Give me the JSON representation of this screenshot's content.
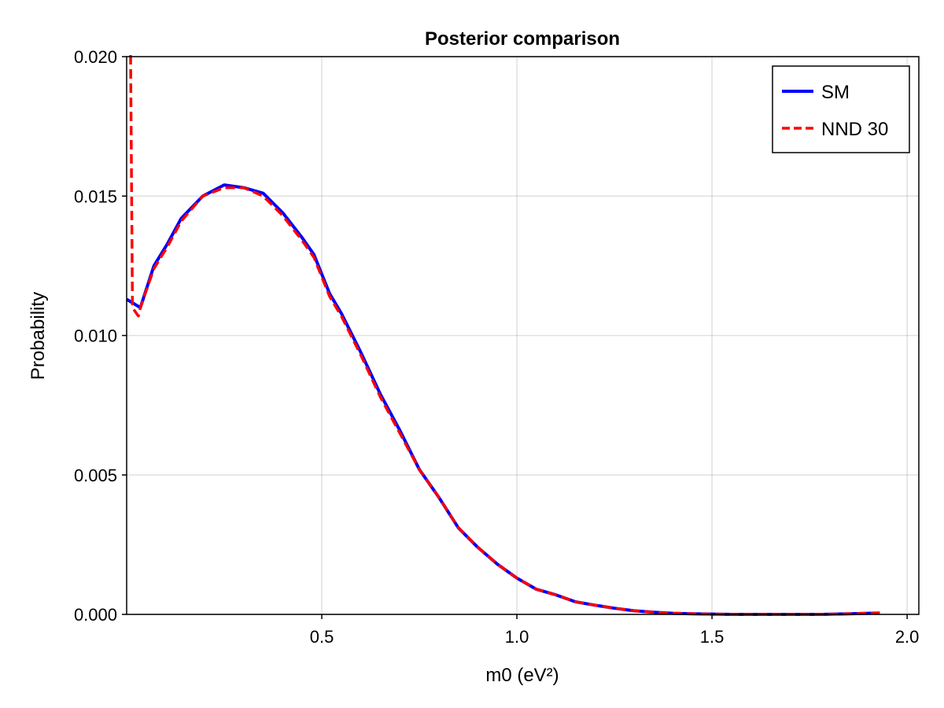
{
  "chart_data": {
    "type": "line",
    "title": "Posterior comparison",
    "xlabel": "m0 (eV²)",
    "ylabel": "Probability",
    "xlim": [
      0.0,
      2.03
    ],
    "ylim": [
      0.0,
      0.02
    ],
    "xticks": [
      0.5,
      1.0,
      1.5,
      2.0
    ],
    "xtick_labels": [
      "0.5",
      "1.0",
      "1.5",
      "2.0"
    ],
    "yticks": [
      0.0,
      0.005,
      0.01,
      0.015,
      0.02
    ],
    "ytick_labels": [
      "0.000",
      "0.005",
      "0.010",
      "0.015",
      "0.020"
    ],
    "grid": true,
    "legend_position": "top-right",
    "series": [
      {
        "name": "SM",
        "color": "#0000ff",
        "style": "solid",
        "x": [
          0.0,
          0.035,
          0.07,
          0.105,
          0.14,
          0.195,
          0.25,
          0.3,
          0.35,
          0.4,
          0.45,
          0.48,
          0.52,
          0.55,
          0.6,
          0.65,
          0.7,
          0.75,
          0.8,
          0.85,
          0.9,
          0.95,
          1.0,
          1.05,
          1.1,
          1.15,
          1.2,
          1.25,
          1.3,
          1.35,
          1.4,
          1.45,
          1.5,
          1.55,
          1.6,
          1.67,
          1.78,
          1.85,
          1.93
        ],
        "y": [
          0.0113,
          0.011,
          0.0125,
          0.0133,
          0.0142,
          0.015,
          0.0154,
          0.0153,
          0.0151,
          0.0144,
          0.0135,
          0.0129,
          0.0115,
          0.0108,
          0.0094,
          0.0079,
          0.0066,
          0.0052,
          0.0042,
          0.0031,
          0.0024,
          0.0018,
          0.0013,
          0.0009,
          0.0007,
          0.00045,
          0.00033,
          0.00022,
          0.00013,
          8e-05,
          4e-05,
          2e-05,
          1e-05,
          0.0,
          0.0,
          0.0,
          0.0,
          2e-05,
          5e-05
        ]
      },
      {
        "name": "NND 30",
        "color": "#ff0000",
        "style": "dashed",
        "x": [
          0.01,
          0.015,
          0.03,
          0.035,
          0.07,
          0.105,
          0.14,
          0.195,
          0.25,
          0.3,
          0.35,
          0.4,
          0.45,
          0.48,
          0.52,
          0.55,
          0.6,
          0.65,
          0.7,
          0.75,
          0.8,
          0.85,
          0.9,
          0.95,
          1.0,
          1.05,
          1.1,
          1.15,
          1.2,
          1.25,
          1.3,
          1.35,
          1.4,
          1.45,
          1.5,
          1.55,
          1.6,
          1.67,
          1.78,
          1.85,
          1.93
        ],
        "y": [
          0.0202,
          0.011,
          0.0107,
          0.011,
          0.0124,
          0.0132,
          0.0141,
          0.015,
          0.0153,
          0.0153,
          0.015,
          0.0143,
          0.0134,
          0.0128,
          0.0114,
          0.0107,
          0.0093,
          0.0078,
          0.0065,
          0.0052,
          0.0042,
          0.0031,
          0.0024,
          0.0018,
          0.0013,
          0.0009,
          0.0007,
          0.00045,
          0.00033,
          0.00022,
          0.00013,
          8e-05,
          4e-05,
          2e-05,
          1e-05,
          0.0,
          0.0,
          0.0,
          0.0,
          2e-05,
          5e-05
        ]
      }
    ]
  }
}
